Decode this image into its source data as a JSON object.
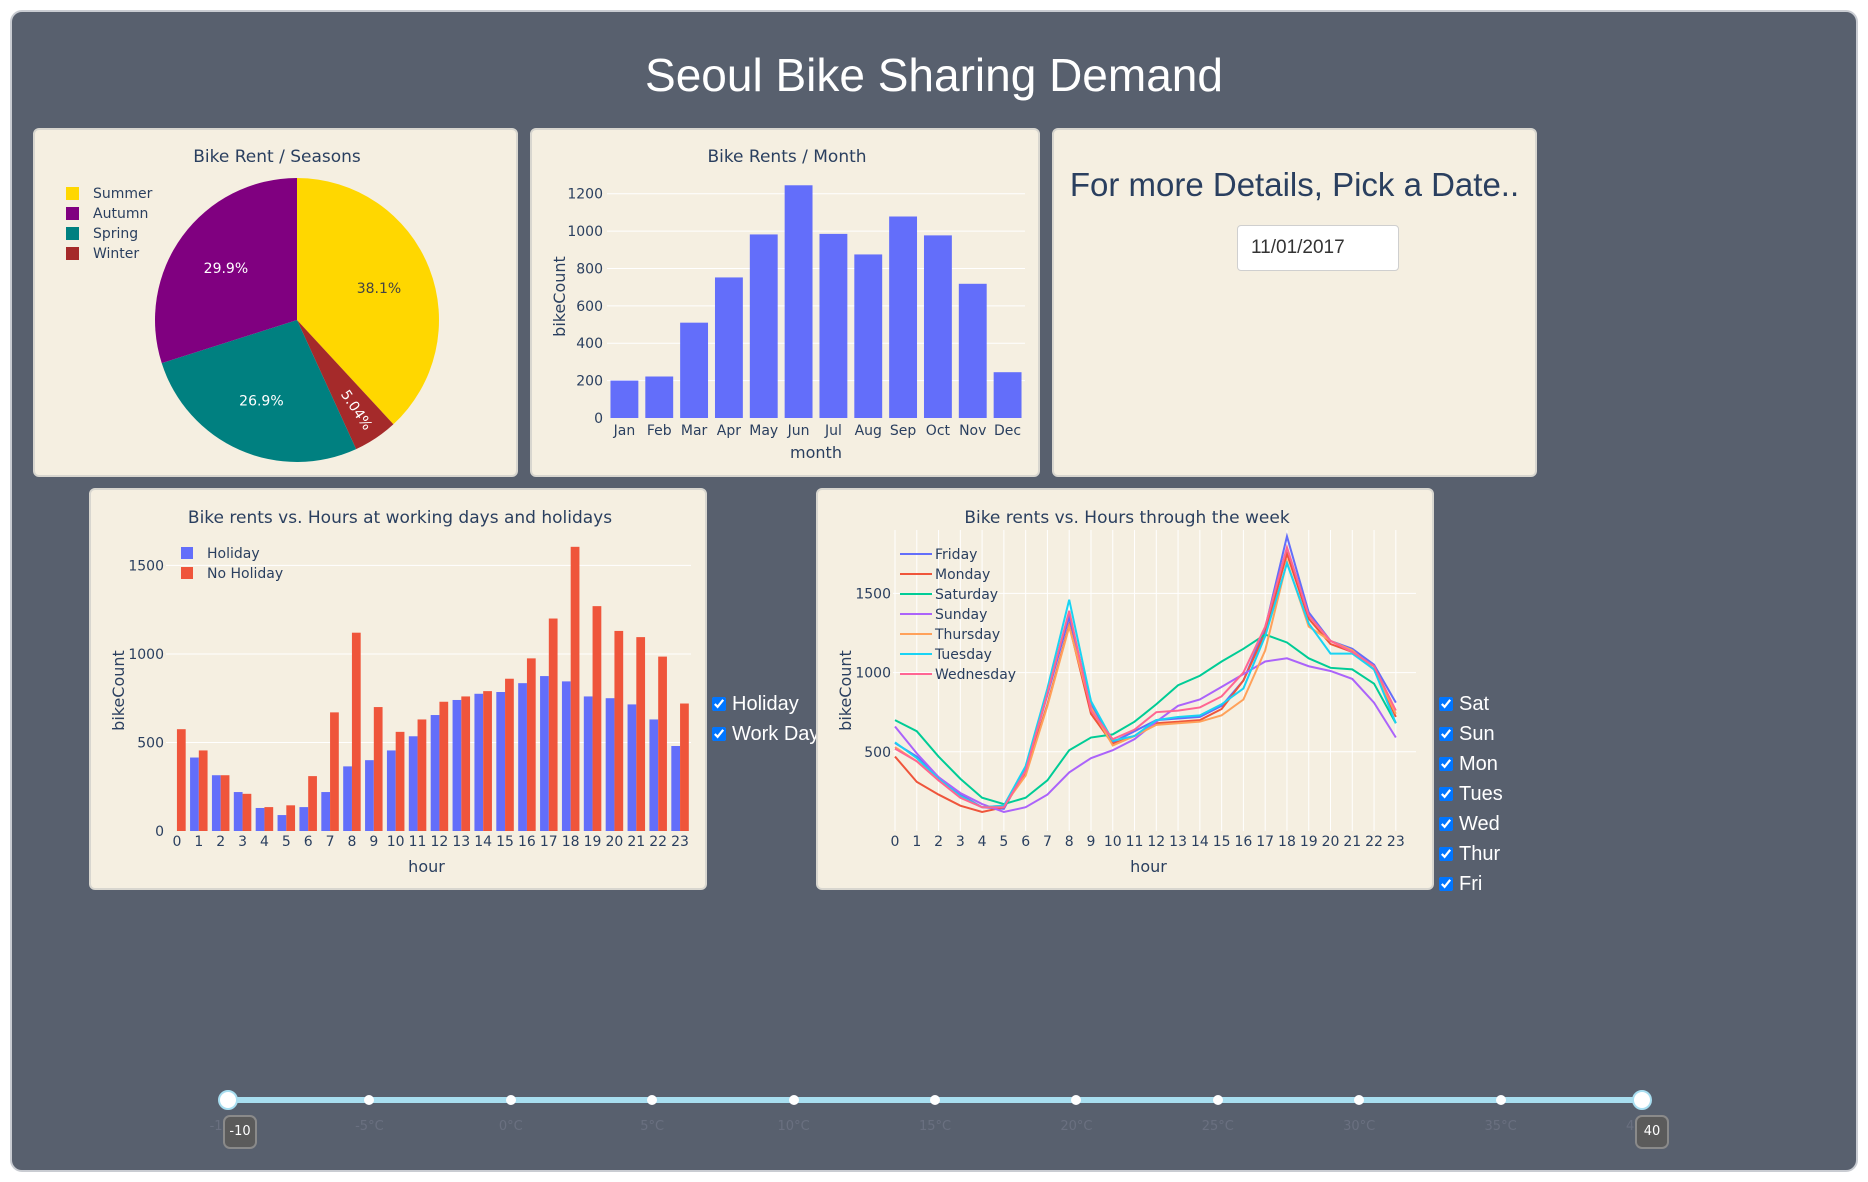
{
  "page": {
    "title": "Seoul Bike Sharing Demand"
  },
  "date_picker": {
    "heading": "For more Details, Pick a Date..",
    "value": "11/01/2017"
  },
  "day_type_checklist": [
    {
      "label": "Holiday",
      "checked": true
    },
    {
      "label": "Work Day",
      "checked": true
    }
  ],
  "weekday_checklist": [
    {
      "label": "Sat",
      "checked": true
    },
    {
      "label": "Sun",
      "checked": true
    },
    {
      "label": "Mon",
      "checked": true
    },
    {
      "label": "Tues",
      "checked": true
    },
    {
      "label": "Wed",
      "checked": true
    },
    {
      "label": "Thur",
      "checked": true
    },
    {
      "label": "Fri",
      "checked": true
    }
  ],
  "temperature_slider": {
    "min": -10,
    "max": 40,
    "selected": [
      -10,
      40
    ],
    "marks": [
      "-10°C",
      "-5°C",
      "0°C",
      "5°C",
      "10°C",
      "15°C",
      "20°C",
      "25°C",
      "30°C",
      "35°C",
      "40°C"
    ],
    "track_color": "#a8def0"
  },
  "chart_data": [
    {
      "type": "pie",
      "title": "Bike Rent / Seasons",
      "labels": [
        "Summer",
        "Autumn",
        "Spring",
        "Winter"
      ],
      "values": [
        38.1,
        29.9,
        26.9,
        5.04
      ],
      "value_labels": [
        "38.1%",
        "29.9%",
        "26.9%",
        "5.04%"
      ],
      "slice_order": [
        "Summer",
        "Winter",
        "Spring",
        "Autumn"
      ],
      "colors": {
        "Summer": "#ffd700",
        "Autumn": "#800080",
        "Spring": "#008080",
        "Winter": "#a52a2a"
      },
      "legend": "top-left"
    },
    {
      "type": "bar",
      "title": "Bike Rents / Month",
      "categories": [
        "Jan",
        "Feb",
        "Mar",
        "Apr",
        "May",
        "Jun",
        "Jul",
        "Aug",
        "Sep",
        "Oct",
        "Nov",
        "Dec"
      ],
      "values": [
        200,
        222,
        510,
        752,
        982,
        1245,
        985,
        875,
        1078,
        977,
        718,
        245
      ],
      "xlabel": "month",
      "ylabel": "bikeCount",
      "ylim": [
        0,
        1300
      ],
      "yticks": [
        0,
        200,
        400,
        600,
        800,
        1000,
        1200
      ],
      "color": "#636efa"
    },
    {
      "type": "bar",
      "title": "Bike rents vs. Hours at working days and holidays",
      "categories": [
        "0",
        "1",
        "2",
        "3",
        "4",
        "5",
        "6",
        "7",
        "8",
        "9",
        "10",
        "11",
        "12",
        "13",
        "14",
        "15",
        "16",
        "17",
        "18",
        "19",
        "20",
        "21",
        "22",
        "23"
      ],
      "series": [
        {
          "name": "Holiday",
          "color": "#636efa",
          "values": [
            0,
            415,
            315,
            220,
            130,
            90,
            135,
            220,
            365,
            400,
            455,
            535,
            655,
            740,
            775,
            785,
            835,
            875,
            845,
            760,
            750,
            715,
            630,
            480
          ]
        },
        {
          "name": "No Holiday",
          "color": "#ef553b",
          "values": [
            575,
            455,
            315,
            210,
            135,
            145,
            310,
            670,
            1120,
            700,
            560,
            630,
            730,
            760,
            790,
            860,
            975,
            1200,
            1605,
            1270,
            1130,
            1095,
            985,
            720
          ]
        }
      ],
      "xlabel": "hour",
      "ylabel": "bikeCount",
      "ylim": [
        0,
        1700
      ],
      "yticks": [
        0,
        500,
        1000,
        1500
      ],
      "legend": "top-left"
    },
    {
      "type": "line",
      "title": "Bike rents vs. Hours through the week",
      "x": [
        "0",
        "1",
        "2",
        "3",
        "4",
        "5",
        "6",
        "7",
        "8",
        "9",
        "10",
        "11",
        "12",
        "13",
        "14",
        "15",
        "16",
        "17",
        "18",
        "19",
        "20",
        "21",
        "22",
        "23"
      ],
      "series": [
        {
          "name": "Friday",
          "color": "#636efa",
          "values": [
            555,
            470,
            340,
            230,
            150,
            140,
            390,
            860,
            1350,
            800,
            560,
            630,
            700,
            710,
            720,
            790,
            950,
            1280,
            1860,
            1380,
            1200,
            1150,
            1050,
            810
          ]
        },
        {
          "name": "Monday",
          "color": "#ef553b",
          "values": [
            470,
            310,
            230,
            160,
            120,
            150,
            370,
            800,
            1300,
            740,
            550,
            600,
            680,
            690,
            700,
            770,
            950,
            1250,
            1750,
            1340,
            1180,
            1130,
            1020,
            720
          ]
        },
        {
          "name": "Saturday",
          "color": "#00cc96",
          "values": [
            700,
            630,
            470,
            330,
            210,
            170,
            210,
            320,
            510,
            590,
            610,
            690,
            800,
            920,
            980,
            1070,
            1150,
            1240,
            1190,
            1090,
            1030,
            1020,
            930,
            680
          ]
        },
        {
          "name": "Sunday",
          "color": "#ab63fa",
          "values": [
            660,
            490,
            340,
            240,
            170,
            120,
            150,
            230,
            370,
            460,
            510,
            580,
            690,
            790,
            830,
            910,
            990,
            1070,
            1090,
            1040,
            1010,
            960,
            810,
            590
          ]
        },
        {
          "name": "Thursday",
          "color": "#ffa15a",
          "values": [
            530,
            440,
            320,
            220,
            150,
            160,
            350,
            790,
            1290,
            780,
            540,
            600,
            670,
            680,
            690,
            730,
            830,
            1140,
            1700,
            1290,
            1200,
            1140,
            1020,
            740
          ]
        },
        {
          "name": "Tuesday",
          "color": "#19d3f3",
          "values": [
            560,
            460,
            330,
            220,
            150,
            160,
            410,
            900,
            1460,
            820,
            570,
            600,
            700,
            720,
            730,
            800,
            900,
            1230,
            1690,
            1310,
            1120,
            1120,
            1020,
            680
          ]
        },
        {
          "name": "Wednesday",
          "color": "#ff6692",
          "values": [
            520,
            440,
            320,
            210,
            150,
            150,
            380,
            870,
            1390,
            760,
            580,
            640,
            750,
            760,
            780,
            850,
            1000,
            1290,
            1790,
            1360,
            1200,
            1130,
            1040,
            760
          ]
        }
      ],
      "xlabel": "hour",
      "ylabel": "bikeCount",
      "ylim": [
        0,
        1900
      ],
      "yticks": [
        500,
        1000,
        1500
      ],
      "legend": "top-left"
    }
  ]
}
